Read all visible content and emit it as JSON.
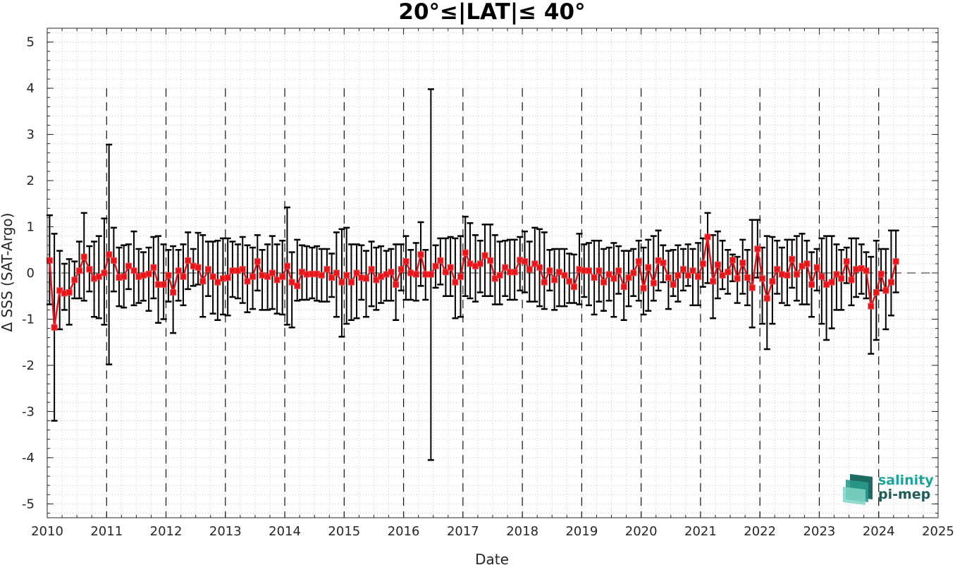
{
  "chart_data": {
    "type": "line",
    "title": "20°≤|LAT|≤ 40°",
    "xlabel": "Date",
    "ylabel": "Δ SSS (SAT-Argo)",
    "xlim": [
      2010,
      2025
    ],
    "ylim": [
      -5.3,
      5.3
    ],
    "x_ticks": [
      "2010",
      "2011",
      "2012",
      "2013",
      "2014",
      "2015",
      "2016",
      "2017",
      "2018",
      "2019",
      "2020",
      "2021",
      "2022",
      "2023",
      "2024",
      "2025"
    ],
    "y_ticks": [
      "5",
      "4",
      "3",
      "2",
      "1",
      "0",
      "-1",
      "-2",
      "-3",
      "-4",
      "-5"
    ],
    "grid": "dotted minor grid; dashed vertical lines at each year",
    "zero_line": "dashed horizontal at 0",
    "series": [
      {
        "color": "#e8141a",
        "errorbar_color": "#000000",
        "marker": "square",
        "x": [
          2010.04,
          2010.12,
          2010.21,
          2010.29,
          2010.37,
          2010.46,
          2010.54,
          2010.62,
          2010.71,
          2010.79,
          2010.87,
          2010.96,
          2011.04,
          2011.12,
          2011.21,
          2011.29,
          2011.37,
          2011.46,
          2011.54,
          2011.62,
          2011.71,
          2011.79,
          2011.87,
          2011.96,
          2012.04,
          2012.12,
          2012.21,
          2012.29,
          2012.37,
          2012.46,
          2012.54,
          2012.62,
          2012.71,
          2012.79,
          2012.87,
          2012.96,
          2013.04,
          2013.12,
          2013.21,
          2013.29,
          2013.37,
          2013.46,
          2013.54,
          2013.62,
          2013.71,
          2013.79,
          2013.87,
          2013.96,
          2014.04,
          2014.12,
          2014.21,
          2014.29,
          2014.37,
          2014.46,
          2014.54,
          2014.62,
          2014.71,
          2014.79,
          2014.87,
          2014.96,
          2015.04,
          2015.12,
          2015.21,
          2015.29,
          2015.37,
          2015.46,
          2015.54,
          2015.62,
          2015.71,
          2015.79,
          2015.87,
          2015.96,
          2016.04,
          2016.12,
          2016.21,
          2016.29,
          2016.37,
          2016.46,
          2016.54,
          2016.62,
          2016.71,
          2016.79,
          2016.87,
          2016.96,
          2017.04,
          2017.12,
          2017.21,
          2017.29,
          2017.37,
          2017.46,
          2017.54,
          2017.62,
          2017.71,
          2017.79,
          2017.87,
          2017.96,
          2018.04,
          2018.12,
          2018.21,
          2018.29,
          2018.37,
          2018.46,
          2018.54,
          2018.62,
          2018.71,
          2018.79,
          2018.87,
          2018.96,
          2019.04,
          2019.12,
          2019.21,
          2019.29,
          2019.37,
          2019.46,
          2019.54,
          2019.62,
          2019.71,
          2019.79,
          2019.87,
          2019.96,
          2020.04,
          2020.12,
          2020.21,
          2020.29,
          2020.37,
          2020.46,
          2020.54,
          2020.62,
          2020.71,
          2020.79,
          2020.87,
          2020.96,
          2021.04,
          2021.12,
          2021.21,
          2021.29,
          2021.37,
          2021.46,
          2021.54,
          2021.62,
          2021.71,
          2021.79,
          2021.87,
          2021.96,
          2022.04,
          2022.12,
          2022.21,
          2022.29,
          2022.37,
          2022.46,
          2022.54,
          2022.62,
          2022.71,
          2022.79,
          2022.87,
          2022.96,
          2023.04,
          2023.12,
          2023.21,
          2023.29,
          2023.37,
          2023.46,
          2023.54,
          2023.62,
          2023.71,
          2023.79,
          2023.87,
          2023.96,
          2024.04,
          2024.12,
          2024.21,
          2024.29
        ],
        "y": [
          0.27,
          -1.18,
          -0.38,
          -0.44,
          -0.42,
          -0.15,
          0.05,
          0.35,
          0.08,
          -0.12,
          -0.08,
          0.0,
          0.4,
          0.27,
          -0.1,
          -0.08,
          0.15,
          0.05,
          -0.08,
          -0.05,
          -0.02,
          0.12,
          -0.25,
          -0.25,
          -0.05,
          -0.42,
          0.05,
          -0.08,
          0.27,
          0.15,
          0.12,
          -0.18,
          0.08,
          -0.08,
          -0.2,
          -0.12,
          -0.1,
          0.05,
          0.05,
          0.08,
          -0.18,
          -0.08,
          0.25,
          -0.05,
          -0.08,
          0.0,
          -0.15,
          -0.08,
          0.15,
          -0.2,
          -0.28,
          0.02,
          -0.03,
          -0.02,
          -0.02,
          -0.05,
          0.08,
          -0.1,
          0.0,
          -0.2,
          -0.05,
          -0.2,
          0.0,
          -0.1,
          -0.12,
          0.08,
          -0.15,
          -0.08,
          -0.03,
          0.02,
          -0.25,
          0.08,
          0.25,
          0.0,
          -0.03,
          0.4,
          -0.03,
          -0.03,
          0.15,
          0.27,
          0.02,
          0.12,
          -0.2,
          -0.08,
          0.44,
          0.2,
          0.15,
          0.2,
          0.38,
          0.27,
          -0.12,
          -0.05,
          0.12,
          0.02,
          0.02,
          0.28,
          0.25,
          0.08,
          0.2,
          0.12,
          -0.2,
          0.05,
          -0.15,
          0.02,
          -0.05,
          -0.18,
          -0.3,
          0.08,
          0.05,
          0.05,
          -0.1,
          0.05,
          -0.2,
          -0.03,
          -0.12,
          0.05,
          -0.3,
          -0.1,
          0.0,
          0.25,
          -0.33,
          0.12,
          -0.22,
          0.27,
          0.22,
          -0.1,
          -0.25,
          -0.05,
          0.08,
          -0.05,
          0.05,
          -0.08,
          0.2,
          0.78,
          -0.18,
          0.18,
          -0.05,
          0.02,
          0.28,
          -0.12,
          0.22,
          -0.1,
          -0.32,
          0.52,
          -0.12,
          -0.55,
          -0.18,
          0.08,
          -0.03,
          -0.05,
          0.3,
          -0.03,
          0.15,
          0.2,
          -0.25,
          0.12,
          -0.08,
          -0.25,
          -0.2,
          -0.03,
          -0.12,
          0.25,
          -0.15,
          0.08,
          0.1,
          0.05,
          -0.72,
          -0.42,
          -0.02,
          -0.38,
          -0.2,
          0.25
        ],
        "err_upper": [
          1.25,
          0.85,
          0.48,
          0.2,
          0.3,
          0.25,
          0.68,
          1.3,
          0.58,
          0.68,
          0.8,
          1.18,
          2.78,
          0.98,
          0.55,
          0.6,
          0.62,
          0.9,
          0.52,
          0.45,
          0.55,
          0.78,
          0.8,
          0.62,
          0.5,
          0.58,
          0.5,
          0.62,
          0.88,
          0.52,
          0.87,
          0.82,
          0.68,
          0.68,
          0.7,
          0.75,
          0.75,
          0.68,
          0.62,
          0.78,
          0.6,
          0.55,
          0.82,
          0.5,
          0.62,
          0.8,
          0.62,
          0.7,
          1.42,
          0.45,
          0.72,
          0.6,
          0.58,
          0.55,
          0.58,
          0.52,
          0.52,
          0.42,
          0.88,
          0.95,
          0.98,
          0.62,
          0.62,
          0.6,
          0.48,
          0.68,
          0.55,
          0.58,
          0.48,
          0.52,
          0.62,
          0.62,
          0.8,
          0.5,
          0.65,
          1.1,
          0.5,
          3.98,
          0.6,
          0.75,
          0.75,
          0.78,
          0.75,
          0.8,
          1.22,
          1.08,
          0.82,
          0.7,
          1.05,
          1.05,
          0.82,
          0.68,
          0.7,
          0.72,
          0.72,
          0.78,
          0.9,
          0.68,
          0.98,
          0.95,
          0.88,
          0.5,
          0.52,
          0.52,
          0.52,
          0.42,
          0.4,
          0.85,
          0.62,
          0.65,
          0.7,
          0.7,
          0.52,
          0.55,
          0.65,
          0.58,
          0.48,
          0.48,
          0.52,
          0.7,
          0.55,
          0.72,
          0.8,
          0.92,
          0.6,
          0.48,
          0.5,
          0.6,
          0.52,
          0.62,
          0.52,
          0.65,
          0.75,
          1.3,
          0.82,
          0.9,
          0.7,
          0.5,
          0.4,
          0.35,
          0.72,
          0.5,
          1.15,
          1.15,
          0.55,
          0.8,
          0.78,
          0.7,
          0.55,
          0.72,
          0.72,
          0.8,
          0.85,
          0.7,
          0.45,
          0.52,
          0.75,
          0.8,
          0.8,
          0.62,
          0.5,
          0.55,
          0.75,
          0.75,
          0.62,
          0.45,
          0.35,
          0.7,
          0.52,
          0.52,
          0.92,
          0.92
        ],
        "err_lower": [
          -0.68,
          -3.2,
          -1.22,
          -0.8,
          -1.12,
          -0.55,
          -0.55,
          -0.6,
          -0.4,
          -0.95,
          -0.98,
          -1.12,
          -1.98,
          -0.4,
          -0.72,
          -0.75,
          -0.35,
          -0.7,
          -0.65,
          -0.6,
          -0.82,
          -0.55,
          -1.08,
          -1.0,
          -0.62,
          -1.3,
          -0.6,
          -0.7,
          -0.35,
          -0.28,
          -0.25,
          -0.95,
          -0.5,
          -0.88,
          -1.02,
          -0.9,
          -0.92,
          -0.52,
          -0.55,
          -0.65,
          -0.85,
          -0.78,
          -0.38,
          -0.8,
          -0.8,
          -0.78,
          -0.88,
          -0.9,
          -1.12,
          -1.18,
          -0.6,
          -0.58,
          -0.58,
          -0.55,
          -0.6,
          -0.62,
          -0.62,
          -0.52,
          -0.95,
          -1.38,
          -1.1,
          -1.02,
          -0.98,
          -0.58,
          -0.95,
          -0.72,
          -0.8,
          -0.65,
          -0.6,
          -0.6,
          -1.02,
          -0.38,
          -0.58,
          -0.58,
          -0.6,
          -0.28,
          -0.58,
          -4.05,
          -0.32,
          -0.25,
          -0.5,
          -0.5,
          -0.98,
          -0.95,
          -0.5,
          -0.55,
          -0.62,
          -0.42,
          -0.5,
          -0.5,
          -0.68,
          -0.68,
          -0.5,
          -0.58,
          -0.58,
          -0.38,
          -0.42,
          -0.62,
          -0.62,
          -0.72,
          -0.78,
          -0.38,
          -0.8,
          -0.72,
          -0.72,
          -0.65,
          -0.65,
          -0.68,
          -0.52,
          -0.7,
          -0.9,
          -0.62,
          -0.82,
          -0.6,
          -0.95,
          -0.45,
          -1.02,
          -0.72,
          -0.5,
          -0.6,
          -0.9,
          -0.82,
          -0.6,
          -0.38,
          -0.2,
          -0.78,
          -0.5,
          -0.62,
          -0.38,
          -0.28,
          -0.7,
          -0.7,
          -0.3,
          -0.22,
          -0.98,
          -0.55,
          -0.35,
          -0.45,
          -0.18,
          -0.65,
          -0.45,
          -0.7,
          -1.18,
          -0.1,
          -1.1,
          -1.65,
          -1.1,
          -0.45,
          -0.65,
          -0.7,
          -0.32,
          -0.6,
          -0.68,
          -0.68,
          -0.95,
          -0.38,
          -1.1,
          -1.45,
          -1.2,
          -0.8,
          -0.8,
          -0.22,
          -0.7,
          -0.52,
          -0.45,
          -0.55,
          -1.75,
          -1.45,
          -0.38,
          -1.22,
          -0.92,
          -0.42
        ]
      }
    ]
  },
  "logo": {
    "line1": "salinity",
    "line2": "pi-mep"
  }
}
